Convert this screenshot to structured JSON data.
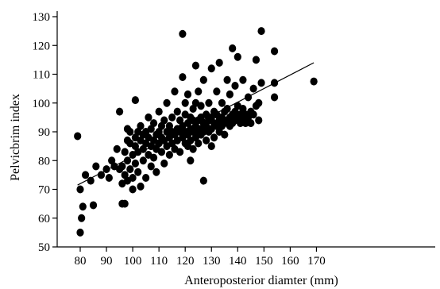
{
  "chart_data": {
    "type": "scatter",
    "title": "",
    "xlabel": "Anteroposterior diamter (mm)",
    "ylabel": "Pelvicbrim index",
    "xlim": [
      70,
      172
    ],
    "ylim": [
      50,
      132
    ],
    "x_ticks": [
      80,
      90,
      100,
      110,
      120,
      130,
      140,
      150,
      160,
      170
    ],
    "y_ticks": [
      50,
      60,
      70,
      80,
      90,
      100,
      110,
      120,
      130
    ],
    "grid": false,
    "legend": "none",
    "marker_color": "#000000",
    "trend_line": {
      "x": [
        79,
        169
      ],
      "y": [
        71.5,
        114
      ]
    },
    "points": [
      [
        79,
        88.5
      ],
      [
        80,
        70
      ],
      [
        80,
        55
      ],
      [
        80.5,
        60
      ],
      [
        81,
        64
      ],
      [
        82,
        75
      ],
      [
        84,
        73
      ],
      [
        85,
        64.5
      ],
      [
        86,
        78
      ],
      [
        88,
        75
      ],
      [
        90,
        77
      ],
      [
        91,
        74
      ],
      [
        92,
        80
      ],
      [
        93,
        78
      ],
      [
        94,
        84
      ],
      [
        95,
        97
      ],
      [
        95,
        77
      ],
      [
        96,
        65
      ],
      [
        96,
        78
      ],
      [
        96,
        72
      ],
      [
        97,
        83
      ],
      [
        97,
        75
      ],
      [
        97,
        65
      ],
      [
        98,
        91
      ],
      [
        98,
        87
      ],
      [
        98,
        80
      ],
      [
        98,
        73
      ],
      [
        99,
        86
      ],
      [
        99,
        90
      ],
      [
        99,
        77
      ],
      [
        100,
        82
      ],
      [
        100,
        74
      ],
      [
        100,
        70
      ],
      [
        101,
        88
      ],
      [
        101,
        85
      ],
      [
        101,
        101
      ],
      [
        101,
        79
      ],
      [
        102,
        90
      ],
      [
        102,
        83
      ],
      [
        102,
        76
      ],
      [
        103,
        87
      ],
      [
        103,
        92
      ],
      [
        103,
        71
      ],
      [
        104,
        89
      ],
      [
        104,
        84
      ],
      [
        104,
        80
      ],
      [
        105,
        86
      ],
      [
        105,
        90
      ],
      [
        105,
        74
      ],
      [
        106,
        88
      ],
      [
        106,
        82
      ],
      [
        106,
        95
      ],
      [
        107,
        85
      ],
      [
        107,
        91
      ],
      [
        107,
        78
      ],
      [
        108,
        87
      ],
      [
        108,
        93
      ],
      [
        108,
        81
      ],
      [
        109,
        89
      ],
      [
        109,
        84
      ],
      [
        109,
        76
      ],
      [
        110,
        90
      ],
      [
        110,
        86
      ],
      [
        110,
        97
      ],
      [
        111,
        88
      ],
      [
        111,
        83
      ],
      [
        111,
        92
      ],
      [
        112,
        87
      ],
      [
        112,
        94
      ],
      [
        112,
        79
      ],
      [
        113,
        90
      ],
      [
        113,
        85
      ],
      [
        113,
        100
      ],
      [
        114,
        88
      ],
      [
        114,
        92
      ],
      [
        114,
        82
      ],
      [
        115,
        86
      ],
      [
        115,
        95
      ],
      [
        115,
        90
      ],
      [
        116,
        89
      ],
      [
        116,
        84
      ],
      [
        116,
        104
      ],
      [
        117,
        91
      ],
      [
        117,
        87
      ],
      [
        117,
        97
      ],
      [
        118,
        90
      ],
      [
        118,
        94
      ],
      [
        118,
        83
      ],
      [
        119,
        88
      ],
      [
        119,
        92
      ],
      [
        119,
        109
      ],
      [
        119,
        124
      ],
      [
        120,
        86
      ],
      [
        120,
        90
      ],
      [
        120,
        96
      ],
      [
        120,
        100
      ],
      [
        121,
        89
      ],
      [
        121,
        85
      ],
      [
        121,
        93
      ],
      [
        121,
        103
      ],
      [
        122,
        91
      ],
      [
        122,
        87
      ],
      [
        122,
        95
      ],
      [
        122,
        80
      ],
      [
        123,
        90
      ],
      [
        123,
        94
      ],
      [
        123,
        98
      ],
      [
        123,
        84
      ],
      [
        124,
        92
      ],
      [
        124,
        88
      ],
      [
        124,
        113
      ],
      [
        124,
        100
      ],
      [
        125,
        90
      ],
      [
        125,
        94
      ],
      [
        125,
        86
      ],
      [
        125,
        104
      ],
      [
        126,
        91
      ],
      [
        126,
        95
      ],
      [
        126,
        89
      ],
      [
        126,
        99
      ],
      [
        127,
        73
      ],
      [
        127,
        93
      ],
      [
        127,
        90
      ],
      [
        127,
        108
      ],
      [
        128,
        92
      ],
      [
        128,
        96
      ],
      [
        128,
        87
      ],
      [
        129,
        94
      ],
      [
        129,
        90
      ],
      [
        129,
        100
      ],
      [
        130,
        95
      ],
      [
        130,
        91
      ],
      [
        130,
        85
      ],
      [
        130,
        112
      ],
      [
        131,
        93
      ],
      [
        131,
        97
      ],
      [
        131,
        88
      ],
      [
        132,
        92
      ],
      [
        132,
        96
      ],
      [
        132,
        104
      ],
      [
        133,
        90
      ],
      [
        133,
        94
      ],
      [
        133,
        114
      ],
      [
        134,
        95
      ],
      [
        134,
        92
      ],
      [
        134,
        100
      ],
      [
        135,
        93
      ],
      [
        135,
        97
      ],
      [
        135,
        89
      ],
      [
        136,
        94
      ],
      [
        136,
        98
      ],
      [
        136,
        108
      ],
      [
        137,
        95
      ],
      [
        137,
        92
      ],
      [
        137,
        103
      ],
      [
        138,
        96
      ],
      [
        138,
        93
      ],
      [
        138,
        119
      ],
      [
        139,
        97
      ],
      [
        139,
        94
      ],
      [
        139,
        106
      ],
      [
        140,
        95
      ],
      [
        140,
        99
      ],
      [
        140,
        116
      ],
      [
        141,
        96
      ],
      [
        141,
        93
      ],
      [
        142,
        98
      ],
      [
        142,
        95
      ],
      [
        142,
        108
      ],
      [
        143,
        96
      ],
      [
        143,
        93
      ],
      [
        144,
        95
      ],
      [
        144,
        102
      ],
      [
        145,
        97
      ],
      [
        145,
        93
      ],
      [
        146,
        105
      ],
      [
        146,
        96
      ],
      [
        147,
        115
      ],
      [
        147,
        99
      ],
      [
        148,
        94
      ],
      [
        148,
        100
      ],
      [
        149,
        125
      ],
      [
        149,
        107
      ],
      [
        154,
        118
      ],
      [
        154,
        107
      ],
      [
        154,
        102
      ],
      [
        169,
        107.5
      ]
    ]
  }
}
